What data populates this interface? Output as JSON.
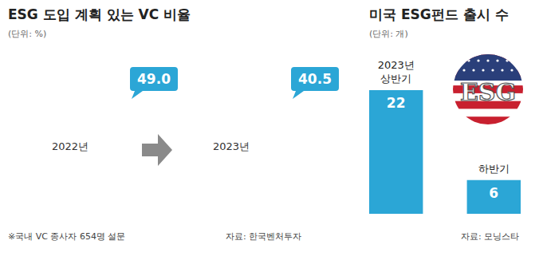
{
  "chart_data": [
    {
      "type": "donut",
      "title": "ESG 도입 계획 있는 VC 비율",
      "subtitle": "(단위: %)",
      "categories": [
        "2022년",
        "2023년"
      ],
      "values": [
        49.0,
        40.5
      ],
      "value_labels": [
        "49.0",
        "40.5"
      ],
      "data_labels": true,
      "color": "#2ba6d6",
      "note": "※국내 VC 종사자 654명 설문",
      "source": "자료: 한국벤처투자"
    },
    {
      "type": "bar",
      "title": "미국 ESG펀드 출시 수",
      "subtitle": "(단위: 개)",
      "categories": [
        "2023년 상반기",
        "하반기"
      ],
      "values": [
        22,
        6
      ],
      "ylim": [
        0,
        22
      ],
      "data_labels": true,
      "tick_labels": false,
      "color": "#2ba6d6",
      "annotations": [
        "ESG"
      ],
      "source": "자료: 모닝스타"
    }
  ]
}
